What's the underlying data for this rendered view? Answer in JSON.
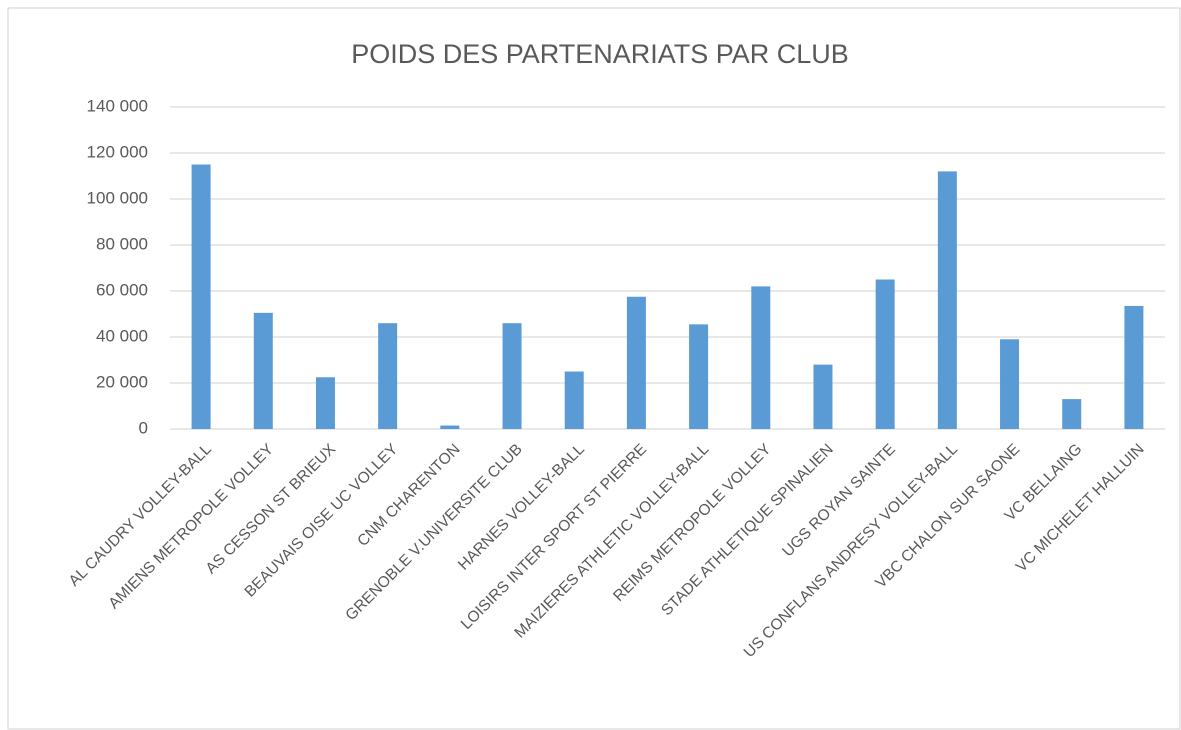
{
  "chart_data": {
    "type": "bar",
    "title": "POIDS DES PARTENARIATS PAR CLUB",
    "categories": [
      "AL CAUDRY VOLLEY-BALL",
      "AMIENS METROPOLE VOLLEY",
      "AS CESSON ST BRIEUX",
      "BEAUVAIS OISE UC VOLLEY",
      "CNM CHARENTON",
      "GRENOBLE V.UNIVERSITE CLUB",
      "HARNES VOLLEY-BALL",
      "LOISIRS INTER SPORT ST PIERRE",
      "MAIZIERES ATHLETIC VOLLEY-BALL",
      "REIMS METROPOLE VOLLEY",
      "STADE ATHLETIQUE SPINALIEN",
      "UGS ROYAN SAINTE",
      "US CONFLANS ANDRESY VOLLEY-BALL",
      "VBC CHALON SUR SAONE",
      "VC BELLAING",
      "VC MICHELET HALLUIN"
    ],
    "values": [
      115000,
      50500,
      22500,
      46000,
      1500,
      46000,
      25000,
      57500,
      45500,
      62000,
      28000,
      65000,
      112000,
      39000,
      13000,
      53500
    ],
    "color": "#5b9bd5",
    "ylim": [
      0,
      140000
    ],
    "yticks": [
      0,
      {
        "value": 20000,
        "label": "20 000"
      },
      {
        "value": 40000,
        "label": "40 000"
      },
      {
        "value": 60000,
        "label": "60 000"
      },
      {
        "value": 80000,
        "label": "80 000"
      },
      {
        "value": 100000,
        "label": "100 000"
      },
      {
        "value": 120000,
        "label": "120 000"
      },
      {
        "value": 140000,
        "label": "140 000"
      }
    ],
    "grid": true
  }
}
